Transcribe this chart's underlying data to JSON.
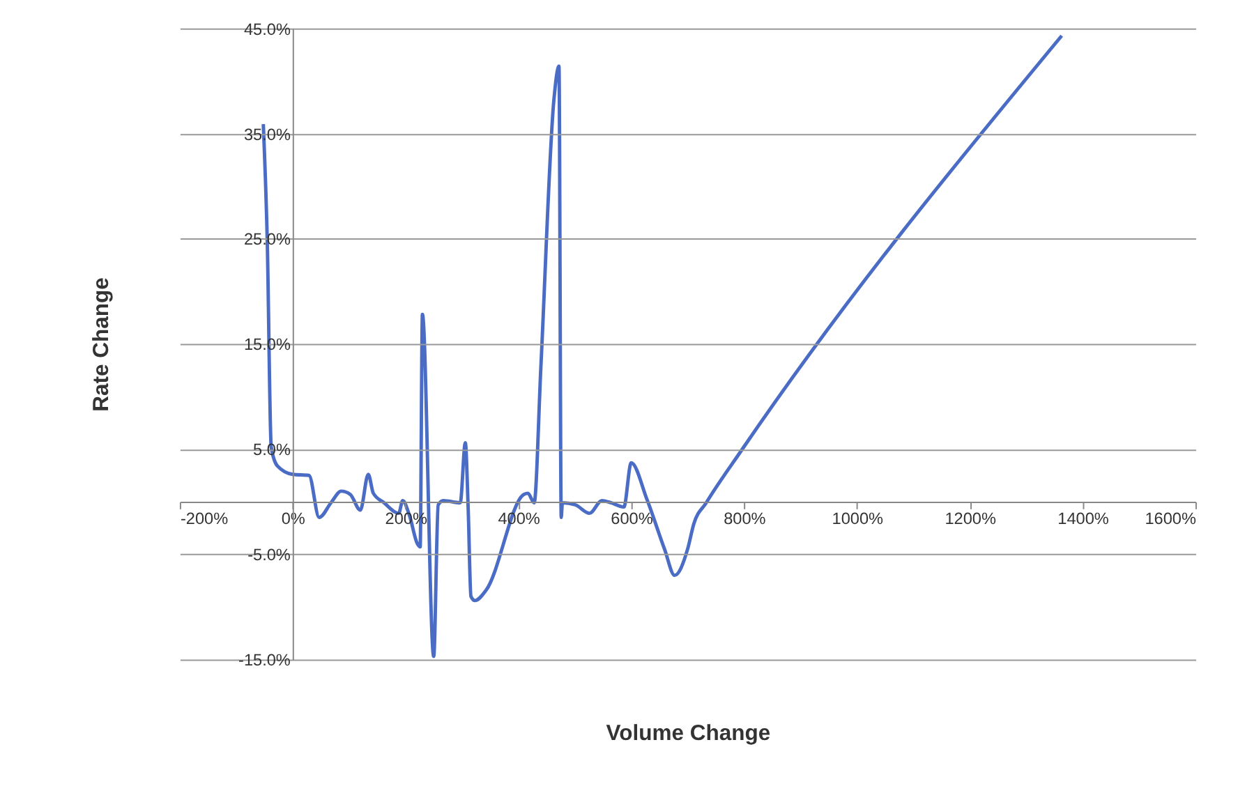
{
  "chart_data": {
    "type": "line",
    "xlabel": "Volume Change",
    "ylabel": "Rate Change",
    "xlim": [
      -200,
      1600
    ],
    "ylim": [
      -15,
      45
    ],
    "xticks": [
      {
        "value": -200,
        "label": "-200%"
      },
      {
        "value": 0,
        "label": "0%"
      },
      {
        "value": 200,
        "label": "200%"
      },
      {
        "value": 400,
        "label": "400%"
      },
      {
        "value": 600,
        "label": "600%"
      },
      {
        "value": 800,
        "label": "800%"
      },
      {
        "value": 1000,
        "label": "1000%"
      },
      {
        "value": 1200,
        "label": "1200%"
      },
      {
        "value": 1400,
        "label": "1400%"
      },
      {
        "value": 1600,
        "label": "1600%"
      }
    ],
    "yticks": [
      {
        "value": -15,
        "label": "-15.0%"
      },
      {
        "value": -5,
        "label": "-5.0%"
      },
      {
        "value": 5,
        "label": "5.0%"
      },
      {
        "value": 15,
        "label": "15.0%"
      },
      {
        "value": 25,
        "label": "25.0%"
      },
      {
        "value": 35,
        "label": "35.0%"
      },
      {
        "value": 45,
        "label": "45.0%"
      }
    ],
    "grid": "y",
    "marker": "none",
    "line_style": "solid",
    "series": [
      {
        "color": "#4a6cc4",
        "x": [
          -52,
          -45,
          -38,
          -27,
          0,
          29,
          47,
          68,
          86,
          102,
          120,
          134,
          143,
          162,
          188,
          195,
          207,
          221,
          226,
          230,
          250,
          258,
          267,
          297,
          306,
          311,
          316,
          323,
          343,
          410,
          417,
          428,
          440,
          463,
          472,
          476,
          478,
          501,
          526,
          548,
          564,
          587,
          600,
          628,
          659,
          677,
          700,
          711,
          733,
          797,
          1363
        ],
        "values": [
          35.9,
          24.8,
          5.2,
          3.4,
          2.6,
          2.5,
          -1.5,
          -0.1,
          1.0,
          0.7,
          -0.8,
          2.6,
          0.8,
          -0.1,
          -1.1,
          0.1,
          -1.3,
          -4.0,
          -4.3,
          17.8,
          -14.7,
          -0.3,
          0.1,
          -0.1,
          5.6,
          -0.5,
          -9.0,
          -9.4,
          -8.4,
          0.7,
          0.8,
          -0.1,
          12.9,
          38.2,
          41.4,
          -1.5,
          -0.1,
          -0.3,
          -1.1,
          0.1,
          -0.1,
          -0.5,
          3.7,
          0.2,
          -4.5,
          -7.0,
          -4.5,
          -2.1,
          -0.1,
          5.0,
          44.3
        ]
      }
    ]
  }
}
